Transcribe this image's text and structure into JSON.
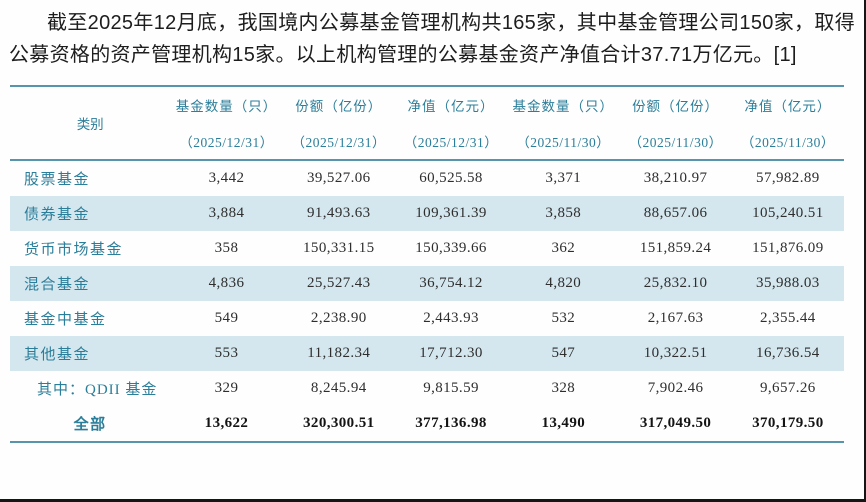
{
  "paragraph": {
    "text": "截至2025年12月底，我国境内公募基金管理机构共165家，其中基金管理公司150家，取得公募资格的资产管理机构15家。以上机构管理的公募基金资产净值合计37.71万亿元。",
    "citation": "[1]"
  },
  "colors": {
    "accent_teal_text": "#2b7e9a",
    "rule_teal": "#5795ad",
    "stripe_blue": "#d4e7ee",
    "body_text": "#1d1d1d"
  },
  "table": {
    "category_header": "类别",
    "column_headers": [
      {
        "label": "基金数量（只）",
        "date": "（2025/12/31）"
      },
      {
        "label": "份额（亿份）",
        "date": "（2025/12/31）"
      },
      {
        "label": "净值（亿元）",
        "date": "（2025/12/31）"
      },
      {
        "label": "基金数量（只）",
        "date": "（2025/11/30）"
      },
      {
        "label": "份额（亿份）",
        "date": "（2025/11/30）"
      },
      {
        "label": "净值（亿元）",
        "date": "（2025/11/30）"
      }
    ],
    "rows": [
      {
        "category": "股票基金",
        "values": [
          "3,442",
          "39,527.06",
          "60,525.58",
          "3,371",
          "38,210.97",
          "57,982.89"
        ]
      },
      {
        "category": "债券基金",
        "values": [
          "3,884",
          "91,493.63",
          "109,361.39",
          "3,858",
          "88,657.06",
          "105,240.51"
        ]
      },
      {
        "category": "货币市场基金",
        "values": [
          "358",
          "150,331.15",
          "150,339.66",
          "362",
          "151,859.24",
          "151,876.09"
        ]
      },
      {
        "category": "混合基金",
        "values": [
          "4,836",
          "25,527.43",
          "36,754.12",
          "4,820",
          "25,832.10",
          "35,988.03"
        ]
      },
      {
        "category": "基金中基金",
        "values": [
          "549",
          "2,238.90",
          "2,443.93",
          "532",
          "2,167.63",
          "2,355.44"
        ]
      },
      {
        "category": "其他基金",
        "values": [
          "553",
          "11,182.34",
          "17,712.30",
          "547",
          "10,322.51",
          "16,736.54"
        ]
      },
      {
        "category": "其中：QDII 基金",
        "values": [
          "329",
          "8,245.94",
          "9,815.59",
          "328",
          "7,902.46",
          "9,657.26"
        ]
      },
      {
        "category": "全部",
        "values": [
          "13,622",
          "320,300.51",
          "377,136.98",
          "13,490",
          "317,049.50",
          "370,179.50"
        ]
      }
    ]
  }
}
